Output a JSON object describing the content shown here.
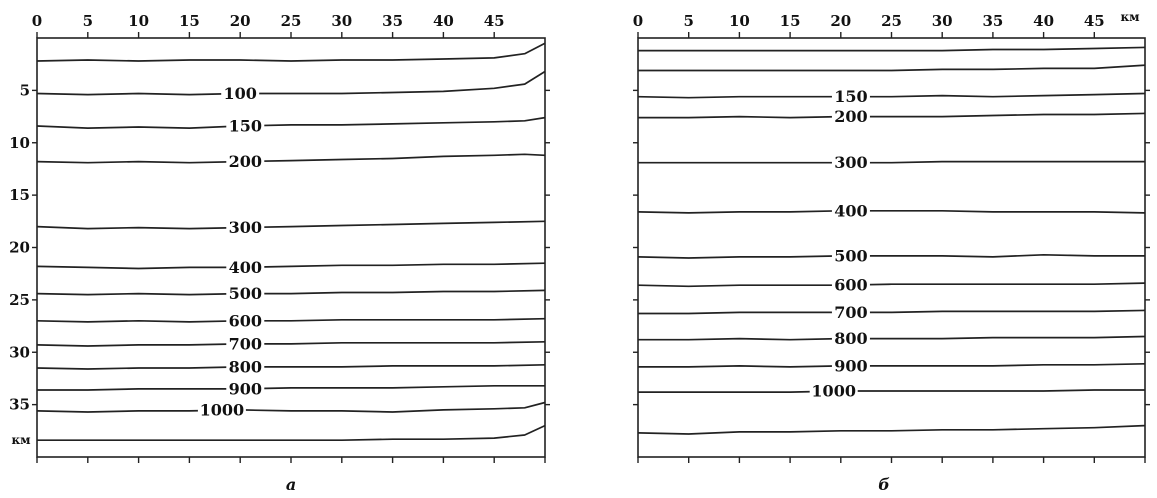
{
  "chart_data": [
    {
      "type": "line",
      "panel_label": "а",
      "xlim": [
        0,
        50
      ],
      "ylim": [
        0,
        40
      ],
      "y_inverted": true,
      "x_tick_labels": [
        "0",
        "5",
        "10",
        "15",
        "20",
        "25",
        "30",
        "35",
        "40",
        "45"
      ],
      "y_tick_labels": [
        "5",
        "10",
        "15",
        "20",
        "25",
        "30",
        "35"
      ],
      "y_unit_label": "км",
      "series": [
        {
          "label": "",
          "x": [
            0,
            5,
            10,
            15,
            20,
            25,
            30,
            35,
            40,
            45,
            48,
            50
          ],
          "y": [
            2.2,
            2.1,
            2.2,
            2.1,
            2.1,
            2.2,
            2.1,
            2.1,
            2.0,
            1.9,
            1.5,
            0.5
          ]
        },
        {
          "label": "100",
          "label_x": 20,
          "x": [
            0,
            5,
            10,
            15,
            20,
            25,
            30,
            35,
            40,
            45,
            48,
            50
          ],
          "y": [
            5.3,
            5.4,
            5.3,
            5.4,
            5.3,
            5.3,
            5.3,
            5.2,
            5.1,
            4.8,
            4.4,
            3.2
          ]
        },
        {
          "label": "150",
          "label_x": 20.5,
          "x": [
            0,
            5,
            10,
            15,
            20,
            25,
            30,
            35,
            40,
            45,
            48,
            50
          ],
          "y": [
            8.4,
            8.6,
            8.5,
            8.6,
            8.4,
            8.3,
            8.3,
            8.2,
            8.1,
            8.0,
            7.9,
            7.6
          ]
        },
        {
          "label": "200",
          "label_x": 20.5,
          "x": [
            0,
            5,
            10,
            15,
            20,
            25,
            30,
            35,
            40,
            45,
            48,
            50
          ],
          "y": [
            11.8,
            11.9,
            11.8,
            11.9,
            11.8,
            11.7,
            11.6,
            11.5,
            11.3,
            11.2,
            11.1,
            11.2
          ]
        },
        {
          "label": "300",
          "label_x": 20.5,
          "x": [
            0,
            5,
            10,
            15,
            20,
            25,
            30,
            35,
            40,
            45,
            50
          ],
          "y": [
            18.0,
            18.2,
            18.1,
            18.2,
            18.1,
            18.0,
            17.9,
            17.8,
            17.7,
            17.6,
            17.5
          ]
        },
        {
          "label": "400",
          "label_x": 20.5,
          "x": [
            0,
            5,
            10,
            15,
            20,
            25,
            30,
            35,
            40,
            45,
            50
          ],
          "y": [
            21.8,
            21.9,
            22.0,
            21.9,
            21.9,
            21.8,
            21.7,
            21.7,
            21.6,
            21.6,
            21.5
          ]
        },
        {
          "label": "500",
          "label_x": 20.5,
          "x": [
            0,
            5,
            10,
            15,
            20,
            25,
            30,
            35,
            40,
            45,
            50
          ],
          "y": [
            24.4,
            24.5,
            24.4,
            24.5,
            24.4,
            24.4,
            24.3,
            24.3,
            24.2,
            24.2,
            24.1
          ]
        },
        {
          "label": "600",
          "label_x": 20.5,
          "x": [
            0,
            5,
            10,
            15,
            20,
            25,
            30,
            35,
            40,
            45,
            50
          ],
          "y": [
            27.0,
            27.1,
            27.0,
            27.1,
            27.0,
            27.0,
            26.9,
            26.9,
            26.9,
            26.9,
            26.8
          ]
        },
        {
          "label": "700",
          "label_x": 20.5,
          "x": [
            0,
            5,
            10,
            15,
            20,
            25,
            30,
            35,
            40,
            45,
            50
          ],
          "y": [
            29.3,
            29.4,
            29.3,
            29.3,
            29.2,
            29.2,
            29.1,
            29.1,
            29.1,
            29.1,
            29.0
          ]
        },
        {
          "label": "800",
          "label_x": 20.5,
          "x": [
            0,
            5,
            10,
            15,
            20,
            25,
            30,
            35,
            40,
            45,
            50
          ],
          "y": [
            31.5,
            31.6,
            31.5,
            31.5,
            31.4,
            31.4,
            31.4,
            31.3,
            31.3,
            31.3,
            31.2
          ]
        },
        {
          "label": "900",
          "label_x": 20.5,
          "x": [
            0,
            5,
            10,
            15,
            20,
            25,
            30,
            35,
            40,
            45,
            50
          ],
          "y": [
            33.6,
            33.6,
            33.5,
            33.5,
            33.5,
            33.4,
            33.4,
            33.4,
            33.3,
            33.2,
            33.2
          ]
        },
        {
          "label": "1000",
          "label_x": 18.2,
          "x": [
            0,
            5,
            10,
            15,
            20,
            25,
            30,
            35,
            40,
            45,
            48,
            50
          ],
          "y": [
            35.6,
            35.7,
            35.6,
            35.6,
            35.5,
            35.6,
            35.6,
            35.7,
            35.5,
            35.4,
            35.3,
            34.8
          ]
        },
        {
          "label": "",
          "x": [
            0,
            5,
            10,
            15,
            20,
            25,
            30,
            35,
            40,
            45,
            48,
            50
          ],
          "y": [
            38.4,
            38.4,
            38.4,
            38.4,
            38.4,
            38.4,
            38.4,
            38.3,
            38.3,
            38.2,
            37.9,
            37.0
          ]
        }
      ]
    },
    {
      "type": "line",
      "panel_label": "б",
      "xlim": [
        0,
        50
      ],
      "ylim": [
        0,
        40
      ],
      "y_inverted": true,
      "x_tick_labels": [
        "0",
        "5",
        "10",
        "15",
        "20",
        "25",
        "30",
        "35",
        "40",
        "45"
      ],
      "x_unit_label": "км",
      "series": [
        {
          "label": "",
          "x": [
            0,
            5,
            10,
            15,
            20,
            25,
            30,
            35,
            40,
            45,
            50
          ],
          "y": [
            1.2,
            1.2,
            1.2,
            1.2,
            1.2,
            1.2,
            1.2,
            1.1,
            1.1,
            1.0,
            0.9
          ]
        },
        {
          "label": "",
          "x": [
            0,
            5,
            10,
            15,
            20,
            25,
            30,
            35,
            40,
            45,
            50
          ],
          "y": [
            3.1,
            3.1,
            3.1,
            3.1,
            3.1,
            3.1,
            3.0,
            3.0,
            2.9,
            2.9,
            2.6
          ]
        },
        {
          "label": "150",
          "label_x": 21,
          "x": [
            0,
            5,
            10,
            15,
            20,
            25,
            30,
            35,
            40,
            45,
            50
          ],
          "y": [
            5.6,
            5.7,
            5.6,
            5.6,
            5.6,
            5.6,
            5.5,
            5.6,
            5.5,
            5.4,
            5.3
          ]
        },
        {
          "label": "200",
          "label_x": 21,
          "x": [
            0,
            5,
            10,
            15,
            20,
            25,
            30,
            35,
            40,
            45,
            50
          ],
          "y": [
            7.6,
            7.6,
            7.5,
            7.6,
            7.5,
            7.5,
            7.5,
            7.4,
            7.3,
            7.3,
            7.2
          ]
        },
        {
          "label": "300",
          "label_x": 21,
          "x": [
            0,
            5,
            10,
            15,
            20,
            25,
            30,
            35,
            40,
            45,
            50
          ],
          "y": [
            11.9,
            11.9,
            11.9,
            11.9,
            11.9,
            11.9,
            11.8,
            11.8,
            11.8,
            11.8,
            11.8
          ]
        },
        {
          "label": "400",
          "label_x": 21,
          "x": [
            0,
            5,
            10,
            15,
            20,
            25,
            30,
            35,
            40,
            45,
            50
          ],
          "y": [
            16.6,
            16.7,
            16.6,
            16.6,
            16.5,
            16.5,
            16.5,
            16.6,
            16.6,
            16.6,
            16.7
          ]
        },
        {
          "label": "500",
          "label_x": 21,
          "x": [
            0,
            5,
            10,
            15,
            20,
            25,
            30,
            35,
            40,
            45,
            50
          ],
          "y": [
            20.9,
            21.0,
            20.9,
            20.9,
            20.8,
            20.8,
            20.8,
            20.9,
            20.7,
            20.8,
            20.8
          ]
        },
        {
          "label": "600",
          "label_x": 21,
          "x": [
            0,
            5,
            10,
            15,
            20,
            25,
            30,
            35,
            40,
            45,
            50
          ],
          "y": [
            23.6,
            23.7,
            23.6,
            23.6,
            23.6,
            23.5,
            23.5,
            23.5,
            23.5,
            23.5,
            23.4
          ]
        },
        {
          "label": "700",
          "label_x": 21,
          "x": [
            0,
            5,
            10,
            15,
            20,
            25,
            30,
            35,
            40,
            45,
            50
          ],
          "y": [
            26.3,
            26.3,
            26.2,
            26.2,
            26.2,
            26.2,
            26.1,
            26.1,
            26.1,
            26.1,
            26.0
          ]
        },
        {
          "label": "800",
          "label_x": 21,
          "x": [
            0,
            5,
            10,
            15,
            20,
            25,
            30,
            35,
            40,
            45,
            50
          ],
          "y": [
            28.8,
            28.8,
            28.7,
            28.8,
            28.7,
            28.7,
            28.7,
            28.6,
            28.6,
            28.6,
            28.5
          ]
        },
        {
          "label": "900",
          "label_x": 21,
          "x": [
            0,
            5,
            10,
            15,
            20,
            25,
            30,
            35,
            40,
            45,
            50
          ],
          "y": [
            31.4,
            31.4,
            31.3,
            31.4,
            31.3,
            31.3,
            31.3,
            31.3,
            31.2,
            31.2,
            31.1
          ]
        },
        {
          "label": "1000",
          "label_x": 19.3,
          "x": [
            0,
            5,
            10,
            15,
            20,
            25,
            30,
            35,
            40,
            45,
            50
          ],
          "y": [
            33.8,
            33.8,
            33.8,
            33.8,
            33.7,
            33.7,
            33.7,
            33.7,
            33.7,
            33.6,
            33.6
          ]
        },
        {
          "label": "",
          "x": [
            0,
            5,
            10,
            15,
            20,
            25,
            30,
            35,
            40,
            45,
            50
          ],
          "y": [
            37.7,
            37.8,
            37.6,
            37.6,
            37.5,
            37.5,
            37.4,
            37.4,
            37.3,
            37.2,
            37.0
          ]
        }
      ]
    }
  ]
}
